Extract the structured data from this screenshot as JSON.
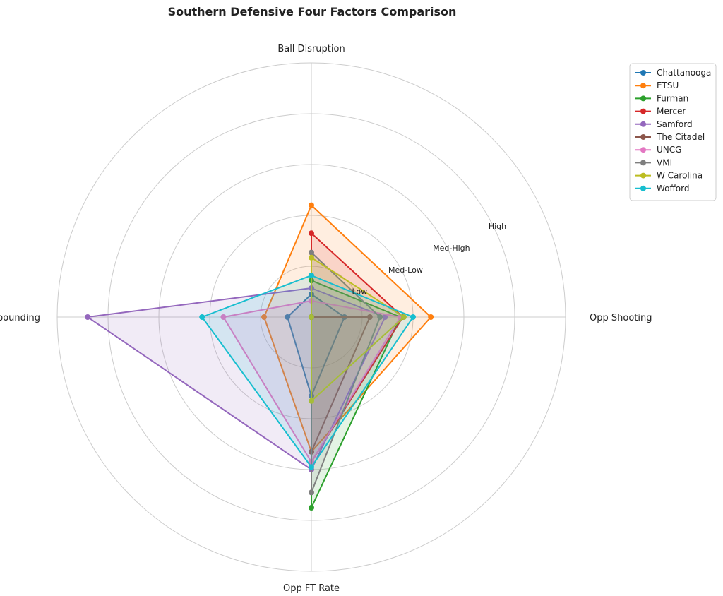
{
  "chart_data": {
    "type": "radar",
    "title": "Southern Defensive Four Factors Comparison",
    "axes": [
      "Ball Disruption",
      "Opp Shooting",
      "Opp FT Rate",
      "Def Rebounding"
    ],
    "rlim": [
      0,
      5
    ],
    "ring_ticks": [
      1,
      2,
      3,
      4,
      5
    ],
    "tick_labels": [
      {
        "r": 0.5,
        "label": "Low"
      },
      {
        "r": 1.5,
        "label": "Med-Low"
      },
      {
        "r": 2.5,
        "label": "Med-High"
      },
      {
        "r": 3.5,
        "label": "High"
      }
    ],
    "grid": true,
    "legend": "upper-right-outside",
    "series": [
      {
        "name": "Chattanooga",
        "color": "#1f77b4",
        "values": [
          0.45,
          0.65,
          1.55,
          0.47
        ]
      },
      {
        "name": "ETSU",
        "color": "#ff7f0e",
        "values": [
          2.2,
          2.35,
          2.65,
          0.93
        ]
      },
      {
        "name": "Furman",
        "color": "#2ca02c",
        "values": [
          0.72,
          1.75,
          3.75,
          0.0
        ]
      },
      {
        "name": "Mercer",
        "color": "#d62728",
        "values": [
          1.65,
          1.8,
          2.85,
          0.0
        ]
      },
      {
        "name": "Samford",
        "color": "#9467bd",
        "values": [
          0.57,
          1.45,
          3.0,
          4.4
        ]
      },
      {
        "name": "The Citadel",
        "color": "#8c564b",
        "values": [
          0.0,
          1.15,
          2.65,
          0.0
        ]
      },
      {
        "name": "UNCG",
        "color": "#e377c2",
        "values": [
          0.32,
          1.75,
          2.85,
          1.73
        ]
      },
      {
        "name": "VMI",
        "color": "#7f7f7f",
        "values": [
          1.27,
          1.35,
          3.45,
          0.0
        ]
      },
      {
        "name": "W Carolina",
        "color": "#bcbd22",
        "values": [
          1.17,
          1.82,
          1.65,
          0.0
        ]
      },
      {
        "name": "Wofford",
        "color": "#17becf",
        "values": [
          0.82,
          2.0,
          2.95,
          2.15
        ]
      }
    ]
  }
}
